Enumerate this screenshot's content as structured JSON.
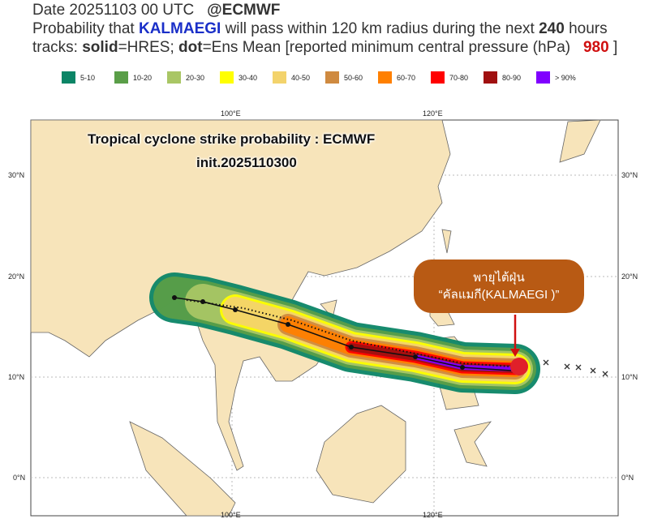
{
  "header": {
    "line1_date": "Date 20251103 00 UTC",
    "line1_source": "@ECMWF",
    "line2_pre": "Probability that ",
    "storm": "KALMAEGI",
    "line2_mid": " will pass within 120 km radius during the next ",
    "hours": "240",
    "line2_post": " hours",
    "line3_pre": "tracks: ",
    "solid": "solid",
    "line3_a": "=HRES; ",
    "dot": "dot",
    "line3_b": "=Ens Mean [reported minimum central pressure (hPa) ",
    "pressure": "980",
    "line3_end": " ]"
  },
  "legend": [
    {
      "label": "5-10",
      "color": "#0b8566"
    },
    {
      "label": "10-20",
      "color": "#5a9e48"
    },
    {
      "label": "20-30",
      "color": "#a9c665"
    },
    {
      "label": "30-40",
      "color": "#ffff00"
    },
    {
      "label": "40-50",
      "color": "#f3d36c"
    },
    {
      "label": "50-60",
      "color": "#cf8a40"
    },
    {
      "label": "60-70",
      "color": "#ff8000"
    },
    {
      "label": "70-80",
      "color": "#ff0000"
    },
    {
      "label": "80-90",
      "color": "#a01010"
    },
    {
      "label": "> 90%",
      "color": "#8000ff"
    }
  ],
  "map": {
    "title": "Tropical cyclone strike  probability : ECMWF",
    "init": "init.2025110300",
    "lon_labels": [
      "100°E",
      "120°E"
    ],
    "lat_labels": [
      "30°N",
      "20°N",
      "10°N",
      "0°N"
    ],
    "callout_line1": "พายุไต้ฝุ่น",
    "callout_line2": "“คัลแมกี(KALMAEGI )”"
  }
}
